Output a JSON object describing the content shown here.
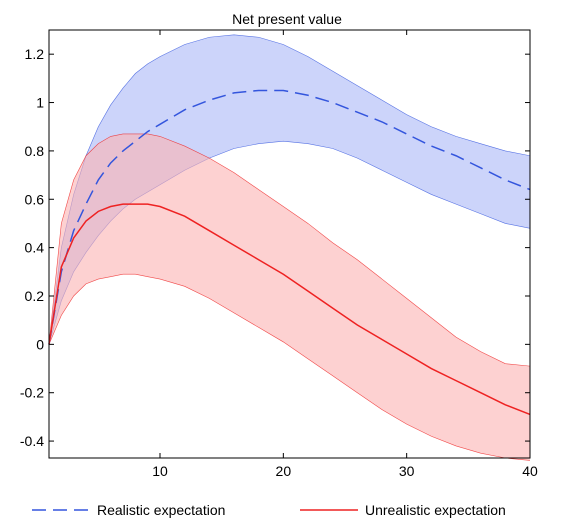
{
  "chart_data": {
    "type": "line",
    "title": "Net present value",
    "xlabel": "",
    "ylabel": "",
    "xlim": [
      1,
      40
    ],
    "ylim": [
      -0.47,
      1.3
    ],
    "grid": false,
    "legend_placement": "bottom",
    "x_ticks": [
      10,
      20,
      30,
      40
    ],
    "x_tick_labels": [
      "10",
      "20",
      "30",
      "40"
    ],
    "y_ticks": [
      -0.4,
      -0.2,
      0,
      0.2,
      0.4,
      0.6,
      0.8,
      1,
      1.2
    ],
    "y_tick_labels": [
      "-0.4",
      "-0.2",
      "0",
      "0.2",
      "0.4",
      "0.6",
      "0.8",
      "1",
      "1.2"
    ],
    "x": [
      1,
      2,
      3,
      4,
      5,
      6,
      7,
      8,
      9,
      10,
      12,
      14,
      16,
      18,
      20,
      22,
      24,
      26,
      28,
      30,
      32,
      34,
      36,
      38,
      40
    ],
    "series": [
      {
        "name": "Realistic expectation",
        "style": "dashed",
        "color": "#3355dd",
        "band_color": "#aab7f6",
        "values": [
          0.0,
          0.3,
          0.47,
          0.58,
          0.68,
          0.75,
          0.8,
          0.84,
          0.88,
          0.91,
          0.97,
          1.01,
          1.04,
          1.05,
          1.05,
          1.03,
          1.0,
          0.96,
          0.92,
          0.87,
          0.82,
          0.78,
          0.73,
          0.68,
          0.64
        ],
        "upper": [
          0.0,
          0.4,
          0.62,
          0.78,
          0.9,
          0.99,
          1.06,
          1.12,
          1.16,
          1.19,
          1.24,
          1.27,
          1.28,
          1.27,
          1.24,
          1.19,
          1.13,
          1.07,
          1.01,
          0.95,
          0.9,
          0.86,
          0.83,
          0.8,
          0.78
        ],
        "lower": [
          0.0,
          0.18,
          0.3,
          0.38,
          0.45,
          0.51,
          0.56,
          0.6,
          0.63,
          0.66,
          0.72,
          0.77,
          0.81,
          0.83,
          0.84,
          0.83,
          0.81,
          0.77,
          0.72,
          0.67,
          0.62,
          0.58,
          0.54,
          0.5,
          0.48
        ]
      },
      {
        "name": "Unrealistic expectation",
        "style": "solid",
        "color": "#ee2222",
        "band_color": "#fbb3b3",
        "values": [
          0.0,
          0.32,
          0.44,
          0.51,
          0.55,
          0.57,
          0.58,
          0.58,
          0.58,
          0.57,
          0.53,
          0.47,
          0.41,
          0.35,
          0.29,
          0.22,
          0.15,
          0.08,
          0.02,
          -0.04,
          -0.1,
          -0.15,
          -0.2,
          -0.25,
          -0.29
        ],
        "upper": [
          0.0,
          0.5,
          0.68,
          0.78,
          0.83,
          0.86,
          0.87,
          0.87,
          0.87,
          0.86,
          0.82,
          0.77,
          0.71,
          0.64,
          0.57,
          0.5,
          0.42,
          0.35,
          0.27,
          0.19,
          0.11,
          0.03,
          -0.03,
          -0.08,
          -0.09
        ],
        "lower": [
          0.0,
          0.12,
          0.2,
          0.25,
          0.27,
          0.28,
          0.29,
          0.29,
          0.28,
          0.27,
          0.24,
          0.19,
          0.13,
          0.07,
          0.01,
          -0.06,
          -0.13,
          -0.2,
          -0.27,
          -0.33,
          -0.38,
          -0.42,
          -0.45,
          -0.47,
          -0.48
        ]
      }
    ]
  }
}
